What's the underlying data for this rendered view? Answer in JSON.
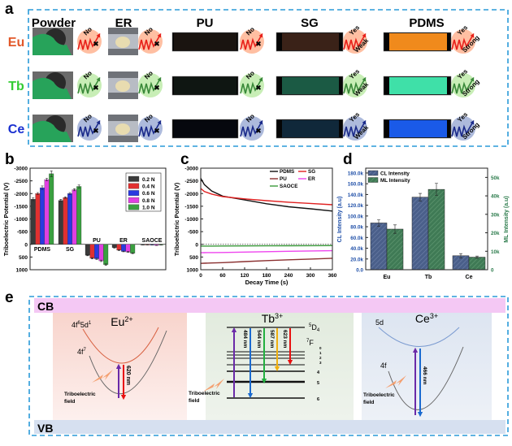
{
  "panel_labels": {
    "a": "a",
    "b": "b",
    "c": "c",
    "d": "d",
    "e": "e"
  },
  "panel_a": {
    "columns": [
      "Powder",
      "ER",
      "PU",
      "SG",
      "PDMS"
    ],
    "rows": [
      {
        "ion": "Eu",
        "color": "#e2582a",
        "glow": "#ff8a55",
        "wave": "#e8201a",
        "strip_colors": [
          "#1a1410",
          "#3a2218",
          "#f08a1c"
        ],
        "results": [
          {
            "detect": "No"
          },
          {
            "detect": "No"
          },
          {
            "detect": "No"
          },
          {
            "detect": "Yes",
            "level": "Weak"
          },
          {
            "detect": "Yes",
            "level": "Strong"
          }
        ]
      },
      {
        "ion": "Tb",
        "color": "#33cc33",
        "glow": "#9be07a",
        "wave": "#3a8a3a",
        "strip_colors": [
          "#0f1612",
          "#1b5a44",
          "#3fe0a8"
        ],
        "results": [
          {
            "detect": "No"
          },
          {
            "detect": "No"
          },
          {
            "detect": "No"
          },
          {
            "detect": "Yes",
            "level": "Weak"
          },
          {
            "detect": "Yes",
            "level": "Strong"
          }
        ]
      },
      {
        "ion": "Ce",
        "color": "#1a30d0",
        "glow": "#6a82c0",
        "wave": "#1a2a8a",
        "strip_colors": [
          "#06080e",
          "#10283a",
          "#1a5ae8"
        ],
        "results": [
          {
            "detect": "No"
          },
          {
            "detect": "No"
          },
          {
            "detect": "No"
          },
          {
            "detect": "Yes",
            "level": "Weak"
          },
          {
            "detect": "Yes",
            "level": "Strong"
          }
        ]
      }
    ],
    "symbol_no": "✖"
  },
  "chart_data": [
    {
      "type": "bar",
      "panel": "b",
      "ylabel": "Triboelectric Potential (V)",
      "ylim": [
        -3000,
        1000
      ],
      "y_inverted": true,
      "yticks": [
        -3000,
        -2500,
        -2000,
        -1500,
        -1000,
        -500,
        0,
        500,
        1000
      ],
      "categories": [
        "PDMS",
        "SG",
        "PU",
        "ER",
        "SAOCE"
      ],
      "legend": "top-right",
      "series": [
        {
          "name": "0.2 N",
          "color": "#3a3a3a",
          "values": [
            -1780,
            -1730,
            430,
            130,
            20
          ],
          "errors": [
            60,
            40,
            20,
            15,
            5
          ]
        },
        {
          "name": "0.4 N",
          "color": "#e03030",
          "values": [
            -2000,
            -1840,
            550,
            230,
            20
          ],
          "errors": [
            40,
            30,
            25,
            15,
            5
          ]
        },
        {
          "name": "0.6 N",
          "color": "#2a3ae0",
          "values": [
            -2230,
            -2000,
            570,
            280,
            25
          ],
          "errors": [
            70,
            40,
            25,
            15,
            5
          ]
        },
        {
          "name": "0.8 N",
          "color": "#e040e0",
          "values": [
            -2550,
            -2150,
            650,
            300,
            40
          ],
          "errors": [
            50,
            40,
            30,
            15,
            5
          ]
        },
        {
          "name": "1.0 N",
          "color": "#3aa040",
          "values": [
            -2780,
            -2280,
            800,
            350,
            25
          ],
          "errors": [
            110,
            60,
            30,
            15,
            5
          ]
        }
      ]
    },
    {
      "type": "line",
      "panel": "c",
      "xlabel": "Decay Time (s)",
      "ylabel": "Triboelectric Potential (V)",
      "xlim": [
        0,
        360
      ],
      "ylim": [
        -3000,
        1000
      ],
      "y_inverted": true,
      "xticks": [
        0,
        60,
        120,
        180,
        240,
        300,
        360
      ],
      "yticks": [
        -3000,
        -2500,
        -2000,
        -1500,
        -1000,
        -500,
        0,
        500,
        1000
      ],
      "legend": "top-right",
      "x": [
        0,
        10,
        30,
        60,
        120,
        180,
        240,
        300,
        360
      ],
      "series": [
        {
          "name": "PDMS",
          "color": "#111111",
          "values": [
            -2600,
            -2350,
            -2100,
            -1900,
            -1750,
            -1600,
            -1480,
            -1400,
            -1310
          ]
        },
        {
          "name": "SG",
          "color": "#e02020",
          "values": [
            -2200,
            -2080,
            -1980,
            -1880,
            -1790,
            -1720,
            -1660,
            -1610,
            -1560
          ]
        },
        {
          "name": "PU",
          "color": "#8a3030",
          "values": [
            750,
            745,
            735,
            720,
            680,
            640,
            610,
            580,
            550
          ]
        },
        {
          "name": "ER",
          "color": "#ee44ee",
          "values": [
            330,
            328,
            325,
            320,
            305,
            290,
            275,
            262,
            250
          ]
        },
        {
          "name": "SAOCE",
          "color": "#3a9a3a",
          "values": [
            70,
            70,
            69,
            67,
            63,
            60,
            56,
            53,
            50
          ]
        }
      ]
    },
    {
      "type": "bar",
      "panel": "d",
      "categories": [
        "Eu",
        "Tb",
        "Ce"
      ],
      "ylabel": "CL Intensity (a.u)",
      "ylabel_right": "ML Intensity (a.u)",
      "ylim": [
        0,
        189000
      ],
      "ylim_right": [
        0,
        55000
      ],
      "yticks": [
        "0.0",
        "20.0k",
        "40.0k",
        "60.0k",
        "80.0k",
        "100.0k",
        "120.0k",
        "140.0k",
        "160.0k",
        "180.0k"
      ],
      "yticks_right": [
        "0",
        "10k",
        "20k",
        "30k",
        "40k",
        "50k"
      ],
      "left_axis_color": "#1f4fa8",
      "right_axis_color": "#2a7a4a",
      "legend": "top-left",
      "series": [
        {
          "name": "CL Intensity",
          "axis": "left",
          "color": "#4a5f8a",
          "values": [
            87000,
            135000,
            26000
          ],
          "errors": [
            6000,
            7000,
            4000
          ]
        },
        {
          "name": "ML Intensity",
          "axis": "right",
          "color": "#3f7a55",
          "values": [
            22000,
            43500,
            6800
          ],
          "errors": [
            2300,
            3300,
            600
          ]
        }
      ]
    }
  ],
  "panel_e": {
    "cb": "CB",
    "vb": "VB",
    "tribo_line1": "Triboelectric",
    "tribo_line2": "field",
    "eu": {
      "ion": "Eu",
      "charge": "2+",
      "upper": "4f",
      "upper_sup": "6",
      "upper2": "5d",
      "upper2_sup": "1",
      "lower": "4f",
      "lower_sup": "7",
      "emission": "620 nm"
    },
    "tb": {
      "ion": "Tb",
      "charge": "3+",
      "upper": "D",
      "upper_pre": "5",
      "upper_sub": "4",
      "lower": "F",
      "lower_pre": "7",
      "levels": [
        "0",
        "1",
        "2",
        "3",
        "4",
        "5",
        "6"
      ],
      "emissions": [
        {
          "label": "484 nm",
          "color": "#1a6ad0"
        },
        {
          "label": "544 nm",
          "color": "#22b040"
        },
        {
          "label": "587 nm",
          "color": "#f0b010"
        },
        {
          "label": "623 nm",
          "color": "#e81010"
        }
      ]
    },
    "ce": {
      "ion": "Ce",
      "charge": "3+",
      "upper": "5d",
      "lower": "4f",
      "emission": "466 nm"
    }
  }
}
